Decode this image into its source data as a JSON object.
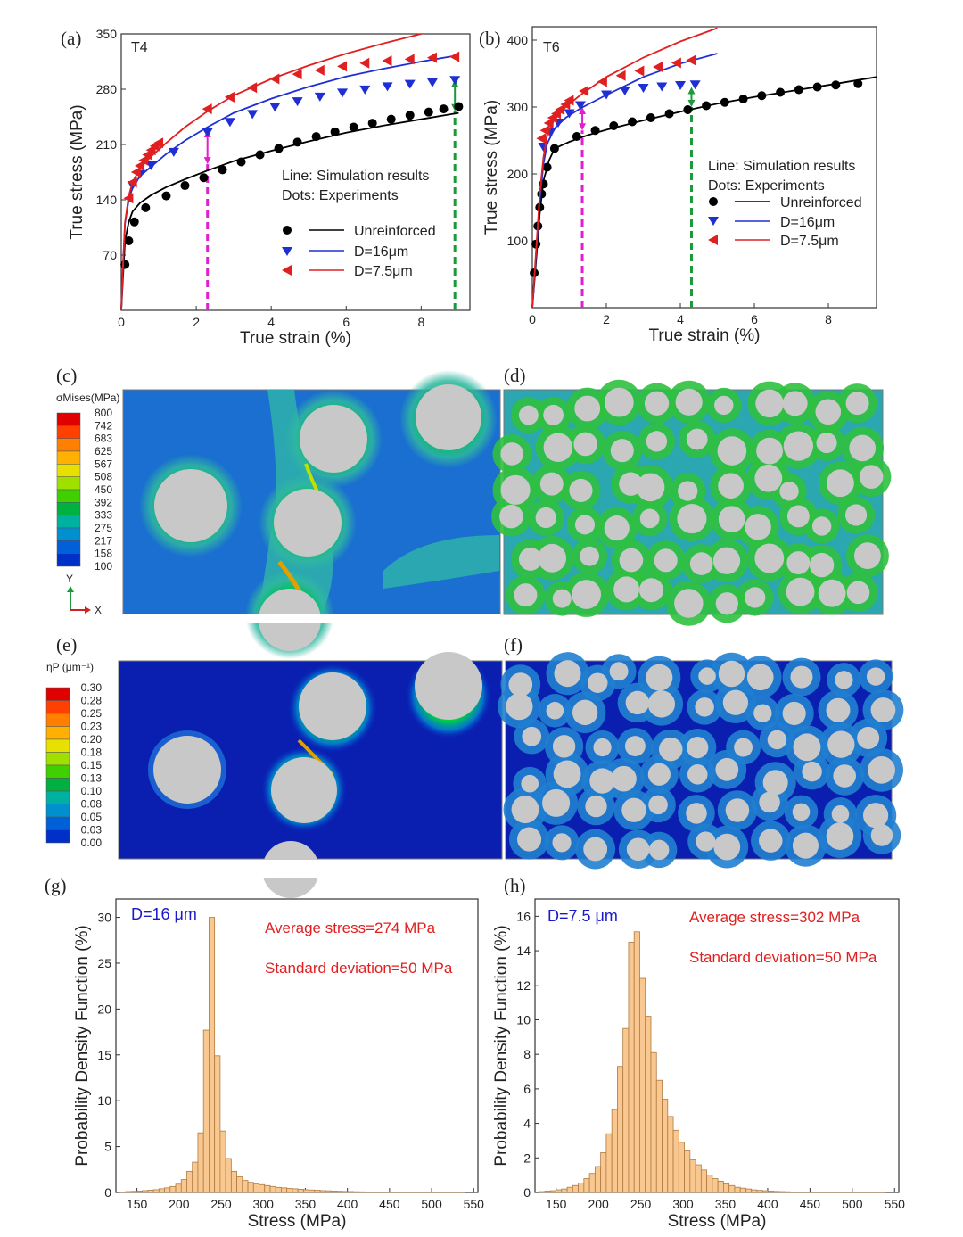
{
  "panel_labels": [
    "(a)",
    "(b)",
    "(c)",
    "(d)",
    "(e)",
    "(f)",
    "(g)",
    "(h)"
  ],
  "colors": {
    "unreinforced": "#000000",
    "d16": "#1f2fd4",
    "d75": "#e02020",
    "magenta_marker": "#e020d0",
    "green_marker": "#1a9a3a",
    "histogram_fill": "#f8c890",
    "particle": "#c8c8c8"
  },
  "chart_data": [
    {
      "id": "a",
      "type": "line",
      "label": "(a)",
      "inset": "T4",
      "xlabel": "True strain (%)",
      "ylabel": "True stress (MPa)",
      "xlim": [
        0,
        9.3
      ],
      "ylim": [
        0,
        350
      ],
      "xticks": [
        0,
        2,
        4,
        6,
        8
      ],
      "yticks": [
        70,
        140,
        210,
        280,
        350
      ],
      "notes": [
        "Line: Simulation results",
        "Dots: Experiments"
      ],
      "legend": [
        "Unreinforced",
        "D=16μm",
        "D=7.5μm"
      ],
      "series": [
        {
          "name": "Unreinforced",
          "kind": "sim",
          "x": [
            0,
            0.05,
            0.1,
            0.2,
            0.3,
            0.5,
            0.8,
            1.2,
            1.7,
            2.3,
            3,
            4,
            5,
            6,
            7,
            8,
            9
          ],
          "y": [
            0,
            45,
            88,
            112,
            125,
            136,
            146,
            156,
            166,
            177,
            189,
            202,
            214,
            225,
            234,
            242,
            250
          ]
        },
        {
          "name": "Unreinforced",
          "kind": "exp",
          "x": [
            0.1,
            0.2,
            0.35,
            0.65,
            1.2,
            1.7,
            2.2,
            2.7,
            3.2,
            3.7,
            4.2,
            4.7,
            5.2,
            5.7,
            6.2,
            6.7,
            7.2,
            7.7,
            8.2,
            8.6,
            9
          ],
          "y": [
            58,
            88,
            112,
            130,
            145,
            158,
            168,
            178,
            188,
            197,
            205,
            213,
            220,
            226,
            232,
            237,
            242,
            247,
            251,
            255,
            258
          ]
        },
        {
          "name": "D=16μm",
          "kind": "sim",
          "x": [
            0,
            0.05,
            0.1,
            0.2,
            0.3,
            0.5,
            0.8,
            1.2,
            1.7,
            2.3,
            3,
            4,
            5,
            6,
            7,
            8,
            9
          ],
          "y": [
            0,
            60,
            110,
            140,
            155,
            170,
            182,
            198,
            215,
            232,
            250,
            268,
            283,
            296,
            306,
            315,
            323
          ]
        },
        {
          "name": "D=16μm",
          "kind": "exp",
          "x": [
            0.3,
            0.5,
            0.8,
            1.4,
            2.3,
            2.9,
            3.5,
            4.1,
            4.7,
            5.3,
            5.9,
            6.5,
            7.1,
            7.7,
            8.3,
            8.9
          ],
          "y": [
            158,
            172,
            183,
            200,
            225,
            238,
            248,
            257,
            264,
            270,
            275,
            279,
            283,
            286,
            288,
            291
          ]
        },
        {
          "name": "D=7.5μm",
          "kind": "sim",
          "x": [
            0,
            0.05,
            0.1,
            0.2,
            0.3,
            0.5,
            0.8,
            1.2,
            1.7,
            2.3,
            3,
            4,
            5,
            6,
            7,
            8
          ],
          "y": [
            0,
            60,
            112,
            145,
            162,
            180,
            195,
            212,
            232,
            252,
            272,
            293,
            310,
            325,
            338,
            350
          ]
        },
        {
          "name": "D=7.5μm",
          "kind": "exp",
          "x": [
            0.2,
            0.3,
            0.4,
            0.5,
            0.6,
            0.7,
            0.8,
            0.9,
            1,
            2.3,
            2.9,
            3.5,
            4.1,
            4.7,
            5.3,
            5.9,
            6.5,
            7.1,
            7.7,
            8.3,
            8.9
          ],
          "y": [
            142,
            162,
            175,
            183,
            190,
            197,
            203,
            208,
            212,
            255,
            270,
            282,
            293,
            299,
            304,
            309,
            313,
            316,
            318,
            320,
            321
          ]
        }
      ],
      "markers": [
        {
          "x": 2.3,
          "y0": 0,
          "y1": 185,
          "y2": 228,
          "color": "magenta"
        },
        {
          "x": 8.9,
          "y0": 0,
          "y1": 252,
          "y2": 292,
          "color": "green"
        }
      ]
    },
    {
      "id": "b",
      "type": "line",
      "label": "(b)",
      "inset": "T6",
      "xlabel": "True strain (%)",
      "ylabel": "True stress (MPa)",
      "xlim": [
        0,
        9.3
      ],
      "ylim": [
        0,
        420
      ],
      "xticks": [
        0,
        2,
        4,
        6,
        8
      ],
      "yticks": [
        100,
        200,
        300,
        400
      ],
      "notes": [
        "Line: Simulation results",
        "Dots: Experiments"
      ],
      "legend": [
        "Unreinforced",
        "D=16μm",
        "D=7.5μm"
      ],
      "series": [
        {
          "name": "Unreinforced",
          "kind": "sim",
          "x": [
            0,
            0.1,
            0.2,
            0.3,
            0.45,
            0.6,
            1,
            1.5,
            2,
            3,
            4,
            5,
            6,
            7,
            8,
            9.3
          ],
          "y": [
            0,
            70,
            140,
            190,
            220,
            238,
            248,
            258,
            266,
            280,
            293,
            305,
            315,
            324,
            333,
            345
          ]
        },
        {
          "name": "Unreinforced",
          "kind": "exp",
          "x": [
            0.05,
            0.1,
            0.15,
            0.2,
            0.25,
            0.3,
            0.4,
            0.6,
            1.2,
            1.7,
            2.2,
            2.7,
            3.2,
            3.7,
            4.2,
            4.7,
            5.2,
            5.7,
            6.2,
            6.7,
            7.2,
            7.7,
            8.2,
            8.8
          ],
          "y": [
            52,
            95,
            122,
            150,
            170,
            185,
            210,
            238,
            256,
            265,
            272,
            278,
            284,
            290,
            296,
            302,
            307,
            312,
            317,
            322,
            326,
            330,
            333,
            335
          ]
        },
        {
          "name": "D=16μm",
          "kind": "sim",
          "x": [
            0,
            0.1,
            0.2,
            0.3,
            0.4,
            0.6,
            0.9,
            1.3,
            2,
            3,
            4,
            5
          ],
          "y": [
            0,
            80,
            160,
            215,
            245,
            268,
            284,
            298,
            318,
            345,
            365,
            380
          ]
        },
        {
          "name": "D=16μm",
          "kind": "exp",
          "x": [
            0.3,
            0.5,
            0.7,
            1,
            1.3,
            2,
            2.5,
            3,
            3.5,
            4,
            4.4
          ],
          "y": [
            240,
            262,
            276,
            290,
            302,
            318,
            324,
            328,
            330,
            332,
            333
          ]
        },
        {
          "name": "D=7.5μm",
          "kind": "sim",
          "x": [
            0,
            0.1,
            0.2,
            0.3,
            0.4,
            0.6,
            0.9,
            1.3,
            2,
            3,
            4,
            5
          ],
          "y": [
            0,
            85,
            170,
            225,
            258,
            282,
            300,
            318,
            345,
            374,
            398,
            418
          ]
        },
        {
          "name": "D=7.5μm",
          "kind": "exp",
          "x": [
            0.25,
            0.35,
            0.45,
            0.55,
            0.65,
            0.75,
            0.9,
            1,
            1.4,
            1.9,
            2.4,
            2.9,
            3.4,
            3.9,
            4.3
          ],
          "y": [
            253,
            265,
            276,
            284,
            290,
            296,
            304,
            310,
            324,
            338,
            347,
            354,
            360,
            366,
            370
          ]
        }
      ],
      "markers": [
        {
          "x": 1.35,
          "y0": 0,
          "y1": 265,
          "y2": 300,
          "color": "magenta"
        },
        {
          "x": 4.3,
          "y0": 0,
          "y1": 300,
          "y2": 330,
          "color": "green"
        }
      ]
    },
    {
      "id": "g",
      "type": "bar",
      "label": "(g)",
      "inset": "D=16 μm",
      "xlabel": "Stress (MPa)",
      "ylabel": "Probability Density Function (%)",
      "xlim": [
        125,
        555
      ],
      "ylim": [
        0,
        32
      ],
      "xticks": [
        150,
        200,
        250,
        300,
        350,
        400,
        450,
        500,
        550
      ],
      "yticks": [
        0,
        5,
        10,
        15,
        20,
        25,
        30
      ],
      "notes": [
        "Average stress=274 MPa",
        "Standard deviation=50 MPa"
      ],
      "bin_start": 130,
      "bin_width": 6.6,
      "values": [
        0.05,
        0.1,
        0.12,
        0.15,
        0.2,
        0.25,
        0.3,
        0.4,
        0.5,
        0.65,
        0.9,
        1.4,
        2.3,
        3.3,
        6.5,
        17.7,
        30,
        14.9,
        6.7,
        3.7,
        2.3,
        1.7,
        1.3,
        1.1,
        0.95,
        0.85,
        0.75,
        0.65,
        0.55,
        0.5,
        0.45,
        0.4,
        0.35,
        0.3,
        0.27,
        0.24,
        0.2,
        0.18,
        0.15,
        0.13,
        0.11,
        0.1,
        0.08,
        0.07,
        0.06,
        0.05,
        0.04,
        0.03,
        0.02,
        0.02,
        0.01,
        0.01,
        0.01,
        0.01,
        0.01,
        0.01,
        0.01,
        0.01,
        0.01,
        0.01,
        0.01,
        0.01
      ]
    },
    {
      "id": "h",
      "type": "bar",
      "label": "(h)",
      "inset": "D=7.5 μm",
      "xlabel": "Stress (MPa)",
      "ylabel": "Probability Density Function (%)",
      "xlim": [
        125,
        555
      ],
      "ylim": [
        0,
        17
      ],
      "xticks": [
        150,
        200,
        250,
        300,
        350,
        400,
        450,
        500,
        550
      ],
      "yticks": [
        0,
        2,
        4,
        6,
        8,
        10,
        12,
        14,
        16
      ],
      "notes": [
        "Average stress=302 MPa",
        "Standard deviation=50 MPa"
      ],
      "bin_start": 130,
      "bin_width": 6.6,
      "values": [
        0.05,
        0.08,
        0.1,
        0.15,
        0.2,
        0.3,
        0.4,
        0.55,
        0.8,
        1.1,
        1.5,
        2.3,
        3.4,
        4.8,
        7.3,
        9.5,
        14.5,
        15.1,
        12.4,
        10.2,
        8.1,
        6.5,
        5.4,
        4.4,
        3.6,
        2.9,
        2.4,
        1.9,
        1.6,
        1.3,
        1.0,
        0.8,
        0.65,
        0.5,
        0.4,
        0.3,
        0.25,
        0.2,
        0.15,
        0.12,
        0.1,
        0.08,
        0.06,
        0.05,
        0.04,
        0.03,
        0.03,
        0.02,
        0.02,
        0.01,
        0.01,
        0.01,
        0.01,
        0.01,
        0.01,
        0.01,
        0.01,
        0.01,
        0.01,
        0.01,
        0.01,
        0.01
      ]
    }
  ],
  "colorbars": [
    {
      "id": "c",
      "title": "σMises(MPa)",
      "ticks": [
        "800",
        "742",
        "683",
        "625",
        "567",
        "508",
        "450",
        "392",
        "333",
        "275",
        "217",
        "158",
        "100"
      ],
      "colors": [
        "#e00000",
        "#ff4000",
        "#ff8000",
        "#ffb000",
        "#e8e000",
        "#a0e000",
        "#40d000",
        "#00b040",
        "#00b0a0",
        "#0090d0",
        "#0060d8",
        "#0030c8"
      ]
    },
    {
      "id": "e",
      "title": "ηP (μm⁻¹)",
      "ticks": [
        "0.30",
        "0.28",
        "0.25",
        "0.23",
        "0.20",
        "0.18",
        "0.15",
        "0.13",
        "0.10",
        "0.08",
        "0.05",
        "0.03",
        "0.00"
      ],
      "colors": [
        "#e00000",
        "#ff4000",
        "#ff8000",
        "#ffb000",
        "#e8e000",
        "#a0e000",
        "#40d000",
        "#00b040",
        "#00b0a0",
        "#0090d0",
        "#0060d8",
        "#0030c8"
      ]
    }
  ],
  "axes_triad": {
    "y": "Y",
    "x": "X"
  }
}
